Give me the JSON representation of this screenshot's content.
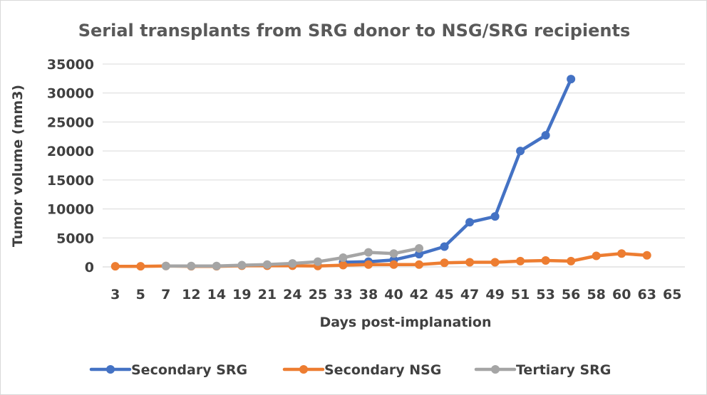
{
  "chart_data": {
    "type": "line",
    "title": "Serial transplants from SRG donor to NSG/SRG recipients",
    "xlabel": "Days post-implanation",
    "ylabel": "Tumor volume (mm3)",
    "categories": [
      "3",
      "5",
      "7",
      "12",
      "14",
      "19",
      "21",
      "24",
      "25",
      "33",
      "38",
      "40",
      "42",
      "45",
      "47",
      "49",
      "51",
      "53",
      "56",
      "58",
      "60",
      "63",
      "65"
    ],
    "ylim": [
      0,
      35000
    ],
    "yticks": [
      "0",
      "5000",
      "10000",
      "15000",
      "20000",
      "25000",
      "30000",
      "35000"
    ],
    "grid": true,
    "legend": "bottom",
    "series": [
      {
        "name": "Secondary SRG",
        "color": "#4472c4",
        "values": [
          null,
          null,
          null,
          null,
          null,
          null,
          null,
          null,
          null,
          800,
          900,
          1200,
          2200,
          3500,
          7700,
          8700,
          20000,
          22700,
          32400,
          null,
          null,
          null,
          null
        ]
      },
      {
        "name": "Secondary NSG",
        "color": "#ed7d31",
        "values": [
          100,
          100,
          150,
          100,
          100,
          200,
          200,
          200,
          150,
          300,
          400,
          400,
          400,
          700,
          800,
          800,
          1000,
          1100,
          1000,
          1900,
          2300,
          2000,
          null
        ]
      },
      {
        "name": "Tertiary SRG",
        "color": "#a5a5a5",
        "values": [
          null,
          null,
          150,
          150,
          150,
          300,
          400,
          600,
          900,
          1600,
          2500,
          2300,
          3200,
          null,
          null,
          null,
          null,
          null,
          null,
          null,
          null,
          null,
          null
        ]
      }
    ]
  }
}
